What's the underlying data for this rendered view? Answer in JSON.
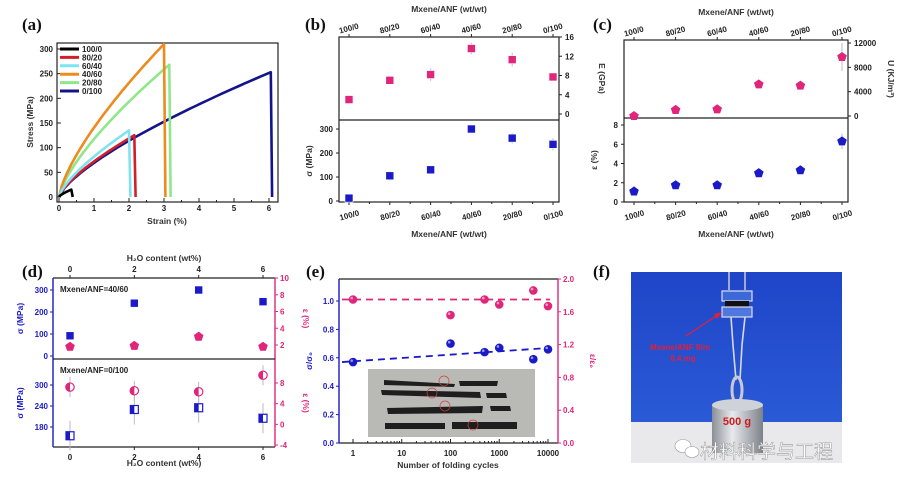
{
  "colors": {
    "blue": "#1a1ac8",
    "pink": "#e0267a",
    "axis": "#222222",
    "photo_blue": "#1c3fc0"
  },
  "chart_data": [
    {
      "panel": "(a)",
      "type": "line",
      "xlabel": "Strain (%)",
      "ylabel": "Stress (MPa)",
      "xlim": [
        0,
        6.25
      ],
      "ylim": [
        -10,
        312
      ],
      "xticks": [
        "0",
        "1",
        "2",
        "3",
        "4",
        "5",
        "6"
      ],
      "xtick_values": [
        0,
        1,
        2,
        3,
        4,
        5,
        6
      ],
      "yticks": [
        "0",
        "50",
        "100",
        "150",
        "200",
        "250",
        "300"
      ],
      "ytick_values": [
        0,
        50,
        100,
        150,
        200,
        250,
        300
      ],
      "legend_position": "top-left",
      "series": [
        {
          "name": "100/0",
          "color": "#000000",
          "break_strain": 0.35,
          "break_stress": 15
        },
        {
          "name": "80/20",
          "color": "#d0202a",
          "break_strain": 2.15,
          "break_stress": 125
        },
        {
          "name": "60/40",
          "color": "#7fe3f0",
          "break_strain": 2.0,
          "break_stress": 135
        },
        {
          "name": "40/60",
          "color": "#ee8a1e",
          "break_strain": 3.0,
          "break_stress": 310
        },
        {
          "name": "20/80",
          "color": "#8ee88a",
          "break_strain": 3.15,
          "break_stress": 268
        },
        {
          "name": "0/100",
          "color": "#14148a",
          "break_strain": 6.05,
          "break_stress": 253
        }
      ]
    },
    {
      "panel": "(b)",
      "type": "scatter",
      "xlabel_top": "Mxene/ANF (wt/wt)",
      "xlabel": "Mxene/ANF (wt/wt)",
      "categories": [
        "100/0",
        "80/20",
        "60/40",
        "40/60",
        "20/80",
        "0/100"
      ],
      "top": {
        "ylabel": "E (GPa)",
        "yticks": [
          "0",
          "4",
          "8",
          "12",
          "16"
        ],
        "ytick_values": [
          0,
          4,
          8,
          12,
          16
        ],
        "values": [
          3.0,
          7.0,
          8.2,
          13.6,
          11.3,
          7.7
        ],
        "errors": [
          0.4,
          0.5,
          1.3,
          1.2,
          1.4,
          0.6
        ]
      },
      "bottom": {
        "ylabel": "σ (MPa)",
        "yticks": [
          "0",
          "100",
          "200",
          "300"
        ],
        "ytick_values": [
          0,
          100,
          200,
          300
        ],
        "values": [
          12,
          105,
          130,
          300,
          262,
          236
        ],
        "errors": [
          8,
          20,
          10,
          8,
          22,
          25
        ]
      }
    },
    {
      "panel": "(c)",
      "type": "scatter",
      "xlabel_top": "Mxene/ANF (wt/wt)",
      "xlabel": "Mxene/ANF (wt/wt)",
      "categories": [
        "100/0",
        "80/20",
        "60/40",
        "40/60",
        "20/80",
        "0/100"
      ],
      "top": {
        "ylabel": "U (KJ/m³)",
        "yticks": [
          "0",
          "4000",
          "8000",
          "12000"
        ],
        "ytick_values": [
          0,
          4000,
          8000,
          12000
        ],
        "values": [
          0,
          1000,
          1100,
          5200,
          5000,
          9700
        ],
        "errors": [
          100,
          200,
          200,
          500,
          300,
          2300
        ]
      },
      "bottom": {
        "ylabel": "ε (%)",
        "yticks": [
          "0",
          "2",
          "4",
          "6",
          "8"
        ],
        "ytick_values": [
          0,
          2,
          4,
          6,
          8
        ],
        "values": [
          1.1,
          1.75,
          1.75,
          3.0,
          3.3,
          6.3
        ],
        "errors": [
          0.1,
          0.15,
          0.15,
          0.2,
          0.2,
          0.8
        ]
      }
    },
    {
      "panel": "(d)",
      "type": "scatter",
      "xlabel_top": "H₂O content (wt%)",
      "xlabel": "H₂O content (wt%)",
      "xticks": [
        "0",
        "2",
        "4",
        "6"
      ],
      "xtick_values": [
        0,
        2,
        4,
        6
      ],
      "top": {
        "annotation": "Mxene/ANF=40/60",
        "ylabel_left": "σ (MPa)",
        "yticks_left": [
          "0",
          "100",
          "200",
          "300"
        ],
        "ytick_values_left": [
          0,
          100,
          200,
          300
        ],
        "ylabel_right": "ε (%)",
        "yticks_right": [
          "2",
          "4",
          "6",
          "8",
          "10"
        ],
        "ytick_values_right": [
          2,
          4,
          6,
          8,
          10
        ],
        "sigma": [
          92,
          240,
          300,
          247
        ],
        "epsilon": [
          1.8,
          1.9,
          3.0,
          1.8
        ]
      },
      "bottom": {
        "annotation": "Mxene/ANF=0/100",
        "ylabel_left": "σ (MPa)",
        "yticks_left": [
          "180",
          "240",
          "300"
        ],
        "ytick_values_left": [
          180,
          240,
          300
        ],
        "ylabel_right": "ε (%)",
        "yticks_right": [
          "-4",
          "0",
          "4",
          "8"
        ],
        "ytick_values_right": [
          -4,
          0,
          4,
          8
        ],
        "sigma": [
          155,
          230,
          235,
          205
        ],
        "epsilon": [
          7.2,
          6.5,
          6.3,
          9.5
        ]
      }
    },
    {
      "panel": "(e)",
      "type": "scatter",
      "xlabel": "Number of folding cycles",
      "xscale": "log",
      "xticks": [
        "1",
        "10",
        "100",
        "1000",
        "10000"
      ],
      "xtick_values": [
        1,
        10,
        100,
        1000,
        10000
      ],
      "ylabel_left": "σ/σ₀",
      "yticks_left": [
        "0.0",
        "0.2",
        "0.4",
        "0.6",
        "0.8",
        "1.0"
      ],
      "ytick_values_left": [
        0,
        0.2,
        0.4,
        0.6,
        0.8,
        1.0
      ],
      "ylabel_right": "ε/ε₀",
      "yticks_right": [
        "0.0",
        "0.4",
        "0.8",
        "1.2",
        "1.6",
        "2.0"
      ],
      "ytick_values_right": [
        0,
        0.4,
        0.8,
        1.2,
        1.6,
        2.0
      ],
      "x": [
        1,
        100,
        500,
        1000,
        5000,
        10000
      ],
      "sigma_ratio": [
        0.57,
        0.7,
        0.64,
        0.67,
        0.59,
        0.66
      ],
      "epsilon_ratio": [
        1.75,
        1.56,
        1.75,
        1.69,
        1.86,
        1.67
      ],
      "sigma_trend": [
        0.57,
        0.67
      ],
      "epsilon_trend": [
        1.75,
        1.75
      ]
    }
  ],
  "photo_f": {
    "panel": "(f)",
    "film_label": "Mxene/ANF film",
    "mass_label": "8.4 mg",
    "weight_label": "500 g"
  },
  "watermark": {
    "text": "材料科学与工程"
  }
}
